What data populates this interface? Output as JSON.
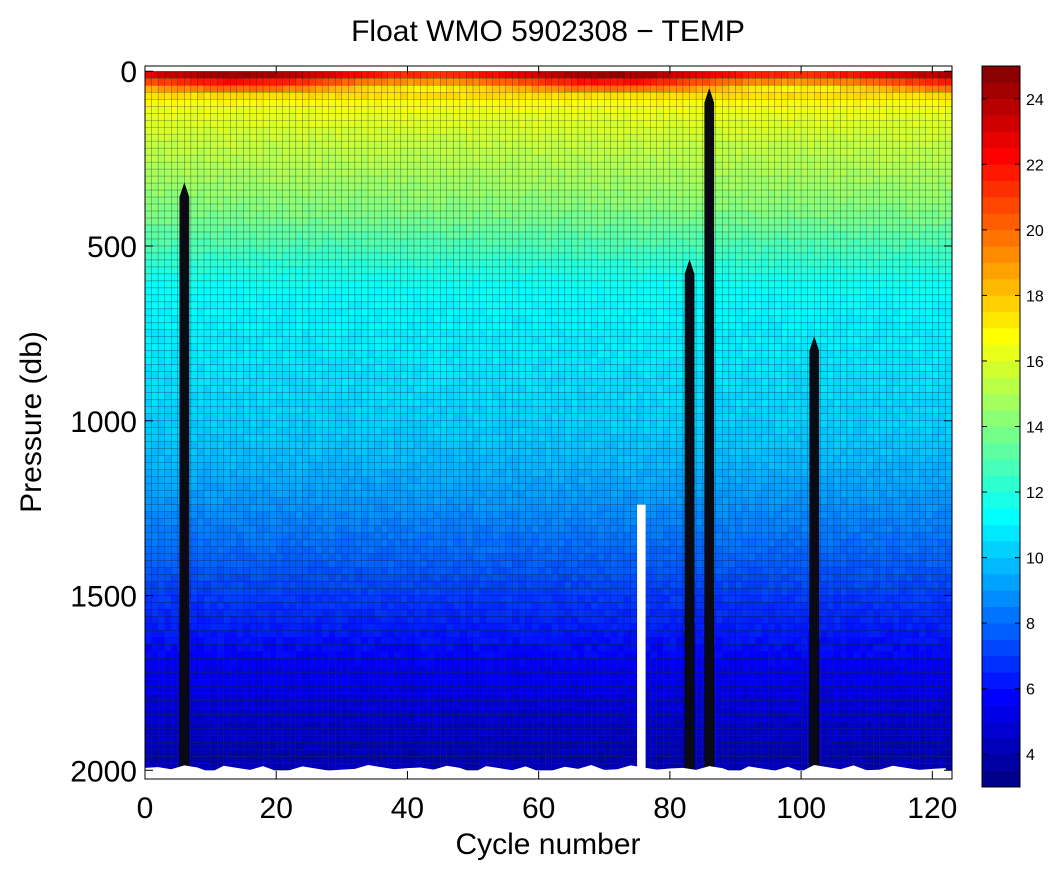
{
  "chart_data": {
    "type": "heatmap",
    "title": "Float WMO 5902308 − TEMP",
    "xlabel": "Cycle number",
    "ylabel": "Pressure (db)",
    "xlim": [
      0,
      123
    ],
    "ylim": [
      2025,
      -15
    ],
    "y_reversed": true,
    "x_ticks": [
      0,
      20,
      40,
      60,
      80,
      100,
      120
    ],
    "y_ticks": [
      0,
      500,
      1000,
      1500,
      2000
    ],
    "colorbar": {
      "range": [
        3,
        25
      ],
      "ticks": [
        4,
        6,
        8,
        10,
        12,
        14,
        16,
        18,
        20,
        22,
        24
      ],
      "colormap": "jet"
    },
    "temperature_profile": {
      "pressure": [
        0,
        25,
        50,
        75,
        100,
        150,
        200,
        300,
        400,
        500,
        600,
        700,
        800,
        900,
        1000,
        1100,
        1200,
        1300,
        1400,
        1500,
        1600,
        1700,
        1800,
        1900,
        2000
      ],
      "temperature": [
        24,
        21,
        18.5,
        17.2,
        16.5,
        16.0,
        15.5,
        14.8,
        14.0,
        12.8,
        11.5,
        11.0,
        10.8,
        10.5,
        10.2,
        9.8,
        9.2,
        8.5,
        7.8,
        7.0,
        6.3,
        5.6,
        5.0,
        4.5,
        4.0
      ]
    },
    "missing_profiles": [
      {
        "cycle": 6,
        "from_pressure": 320
      },
      {
        "cycle": 83,
        "from_pressure": 540
      },
      {
        "cycle": 86,
        "from_pressure": 50
      },
      {
        "cycle": 102,
        "from_pressure": 760
      }
    ],
    "gaps": [
      {
        "cycle_start": 75,
        "cycle_end": 76.3,
        "from_pressure": 1240
      }
    ]
  }
}
